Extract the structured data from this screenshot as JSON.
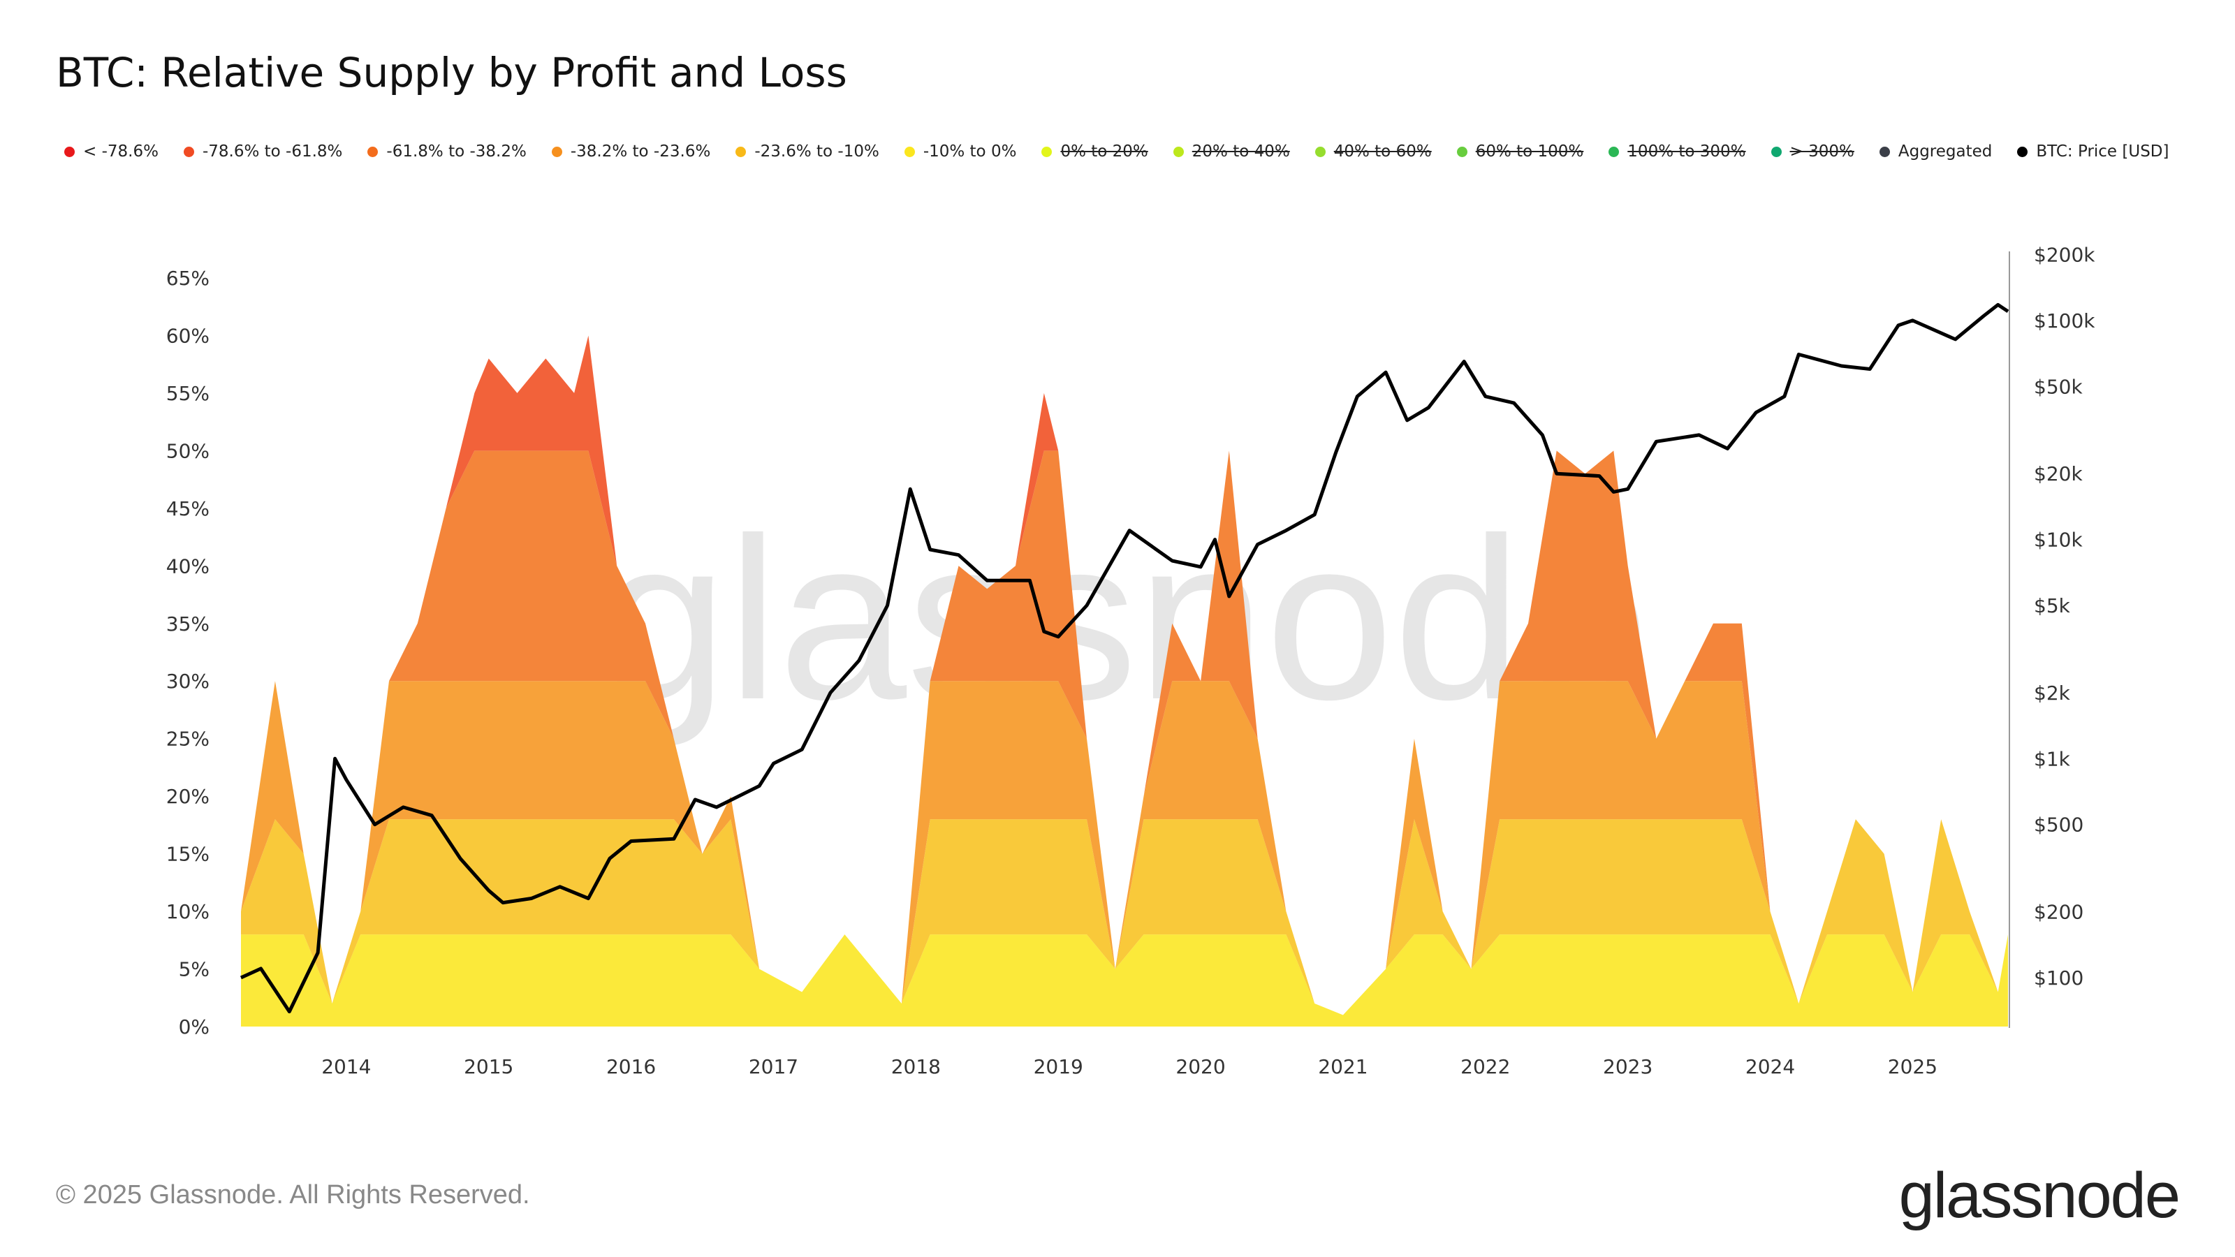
{
  "title": "BTC: Relative Supply by Profit and Loss",
  "footer": "© 2025 Glassnode. All Rights Reserved.",
  "logo": "glassnode",
  "watermark": "glassnode",
  "legend": [
    {
      "label": "< -78.6%",
      "color": "#e8191b",
      "enabled": true
    },
    {
      "label": "-78.6% to -61.8%",
      "color": "#f04b23",
      "enabled": true
    },
    {
      "label": "-61.8% to -38.2%",
      "color": "#f36c1c",
      "enabled": true
    },
    {
      "label": "-38.2% to -23.6%",
      "color": "#f6901e",
      "enabled": true
    },
    {
      "label": "-23.6% to -10%",
      "color": "#f8b918",
      "enabled": true
    },
    {
      "label": "-10% to 0%",
      "color": "#fbe61e",
      "enabled": true
    },
    {
      "label": "0% to 20%",
      "color": "#e2f51b",
      "enabled": false
    },
    {
      "label": "20% to 40%",
      "color": "#bde81c",
      "enabled": false
    },
    {
      "label": "40% to 60%",
      "color": "#96dd2e",
      "enabled": false
    },
    {
      "label": "60% to 100%",
      "color": "#68cd3e",
      "enabled": false
    },
    {
      "label": "100% to 300%",
      "color": "#2bb755",
      "enabled": false
    },
    {
      "label": "> 300%",
      "color": "#10a870",
      "enabled": false
    },
    {
      "label": "Aggregated",
      "color": "#3b3f48",
      "enabled": true
    },
    {
      "label": "BTC: Price [USD]",
      "color": "#000000",
      "enabled": true
    }
  ],
  "chart_data": {
    "type": "area",
    "title": "BTC: Relative Supply by Profit and Loss",
    "x_ticks": [
      "2014",
      "2015",
      "2016",
      "2017",
      "2018",
      "2019",
      "2020",
      "2021",
      "2022",
      "2023",
      "2024",
      "2025"
    ],
    "xlim": [
      2013.26,
      2025.67
    ],
    "y_left": {
      "ticks": [
        "0%",
        "5%",
        "10%",
        "15%",
        "20%",
        "25%",
        "30%",
        "35%",
        "40%",
        "45%",
        "50%",
        "55%",
        "60%",
        "65%"
      ],
      "ylim": [
        0,
        65
      ],
      "unit": "%"
    },
    "y_right": {
      "scale": "log",
      "ticks": [
        "$100",
        "$200",
        "$500",
        "$1k",
        "$2k",
        "$5k",
        "$10k",
        "$20k",
        "$50k",
        "$100k",
        "$200k"
      ],
      "tick_values": [
        100,
        200,
        500,
        1000,
        2000,
        5000,
        10000,
        20000,
        50000,
        100000,
        200000
      ],
      "ylim": [
        100,
        200000
      ]
    },
    "grid": false,
    "legend_placement": "top",
    "x": [
      2013.26,
      2013.5,
      2013.7,
      2013.9,
      2014.1,
      2014.3,
      2014.5,
      2014.7,
      2014.9,
      2015.0,
      2015.2,
      2015.4,
      2015.6,
      2015.7,
      2015.9,
      2016.1,
      2016.3,
      2016.5,
      2016.7,
      2016.9,
      2017.2,
      2017.5,
      2017.7,
      2017.9,
      2018.1,
      2018.3,
      2018.5,
      2018.7,
      2018.9,
      2019.0,
      2019.2,
      2019.4,
      2019.6,
      2019.8,
      2020.0,
      2020.2,
      2020.4,
      2020.6,
      2020.8,
      2021.0,
      2021.3,
      2021.5,
      2021.7,
      2021.9,
      2022.1,
      2022.3,
      2022.5,
      2022.7,
      2022.9,
      2023.0,
      2023.2,
      2023.4,
      2023.6,
      2023.8,
      2024.0,
      2024.2,
      2024.4,
      2024.6,
      2024.8,
      2025.0,
      2025.2,
      2025.4,
      2025.6,
      2025.67
    ],
    "series": [
      {
        "name": "-10% to 0%",
        "color": "#fbe93a",
        "values": [
          8,
          8,
          8,
          2,
          8,
          8,
          8,
          8,
          8,
          8,
          8,
          8,
          8,
          8,
          8,
          8,
          8,
          8,
          8,
          5,
          3,
          8,
          5,
          2,
          8,
          8,
          8,
          8,
          8,
          8,
          8,
          5,
          8,
          8,
          8,
          8,
          8,
          8,
          2,
          1,
          5,
          8,
          8,
          5,
          8,
          8,
          8,
          8,
          8,
          8,
          8,
          8,
          8,
          8,
          8,
          2,
          8,
          8,
          8,
          3,
          8,
          8,
          3,
          8
        ]
      },
      {
        "name": "-23.6% to -10%",
        "color": "#f9c93a",
        "values": [
          2,
          10,
          7,
          0,
          2,
          10,
          10,
          10,
          10,
          10,
          10,
          10,
          10,
          10,
          10,
          10,
          10,
          7,
          10,
          0,
          0,
          0,
          0,
          0,
          10,
          10,
          10,
          10,
          10,
          10,
          10,
          0,
          10,
          10,
          10,
          10,
          10,
          2,
          0,
          0,
          0,
          10,
          2,
          0,
          10,
          10,
          10,
          10,
          10,
          10,
          10,
          10,
          10,
          10,
          2,
          0,
          2,
          10,
          7,
          0,
          10,
          2,
          0,
          0
        ]
      },
      {
        "name": "-38.2% to -23.6%",
        "color": "#f7a23a",
        "values": [
          0,
          12,
          0,
          0,
          0,
          12,
          12,
          12,
          12,
          12,
          12,
          12,
          12,
          12,
          12,
          12,
          7,
          0,
          2,
          0,
          0,
          0,
          0,
          0,
          12,
          12,
          12,
          12,
          12,
          12,
          7,
          0,
          2,
          12,
          12,
          12,
          7,
          0,
          0,
          0,
          0,
          7,
          0,
          0,
          12,
          12,
          12,
          12,
          12,
          12,
          7,
          12,
          12,
          12,
          0,
          0,
          0,
          0,
          0,
          0,
          0,
          0,
          0,
          0
        ]
      },
      {
        "name": "-61.8% to -38.2%",
        "color": "#f4853a",
        "values": [
          0,
          0,
          0,
          0,
          0,
          0,
          5,
          15,
          20,
          20,
          20,
          20,
          20,
          20,
          10,
          5,
          0,
          0,
          0,
          0,
          0,
          0,
          0,
          0,
          0,
          10,
          8,
          10,
          20,
          20,
          0,
          0,
          0,
          5,
          0,
          20,
          0,
          0,
          0,
          0,
          0,
          0,
          0,
          0,
          0,
          5,
          20,
          18,
          20,
          10,
          0,
          0,
          5,
          5,
          0,
          0,
          0,
          0,
          0,
          0,
          0,
          0,
          0,
          0
        ]
      },
      {
        "name": "-78.6% to -61.8%",
        "color": "#f2623a",
        "values": [
          0,
          0,
          0,
          0,
          0,
          0,
          0,
          0,
          5,
          8,
          5,
          8,
          5,
          10,
          0,
          0,
          0,
          0,
          0,
          0,
          0,
          0,
          0,
          0,
          0,
          0,
          0,
          0,
          5,
          0,
          0,
          0,
          0,
          0,
          0,
          0,
          0,
          0,
          0,
          0,
          0,
          0,
          0,
          0,
          0,
          0,
          0,
          0,
          0,
          0,
          0,
          0,
          0,
          0,
          0,
          0,
          0,
          0,
          0,
          0,
          0,
          0,
          0,
          0
        ]
      },
      {
        "name": "< -78.6%",
        "color": "#e8191b",
        "values": [
          0,
          0,
          0,
          0,
          0,
          0,
          0,
          0,
          0,
          0,
          0,
          0,
          0,
          0,
          0,
          0,
          0,
          0,
          0,
          0,
          0,
          0,
          0,
          0,
          0,
          0,
          0,
          0,
          0,
          0,
          0,
          0,
          0,
          0,
          0,
          0,
          0,
          0,
          0,
          0,
          0,
          0,
          0,
          0,
          0,
          0,
          0,
          0,
          0,
          0,
          0,
          0,
          0,
          0,
          0,
          0,
          0,
          0,
          0,
          0,
          0,
          0,
          0,
          0
        ]
      }
    ],
    "price": {
      "name": "BTC: Price [USD]",
      "color": "#000000",
      "x": [
        2013.26,
        2013.4,
        2013.6,
        2013.8,
        2013.92,
        2014.0,
        2014.2,
        2014.4,
        2014.6,
        2014.8,
        2015.0,
        2015.1,
        2015.3,
        2015.5,
        2015.7,
        2015.85,
        2016.0,
        2016.3,
        2016.45,
        2016.6,
        2016.9,
        2017.0,
        2017.2,
        2017.4,
        2017.6,
        2017.8,
        2017.96,
        2018.1,
        2018.3,
        2018.5,
        2018.8,
        2018.9,
        2019.0,
        2019.2,
        2019.5,
        2019.8,
        2020.0,
        2020.1,
        2020.2,
        2020.4,
        2020.6,
        2020.8,
        2020.95,
        2021.1,
        2021.3,
        2021.45,
        2021.6,
        2021.85,
        2022.0,
        2022.2,
        2022.4,
        2022.5,
        2022.8,
        2022.9,
        2023.0,
        2023.2,
        2023.5,
        2023.7,
        2023.9,
        2024.1,
        2024.2,
        2024.5,
        2024.7,
        2024.9,
        2025.0,
        2025.3,
        2025.5,
        2025.6,
        2025.67
      ],
      "values": [
        100,
        110,
        70,
        130,
        1000,
        800,
        500,
        600,
        550,
        350,
        250,
        220,
        230,
        260,
        230,
        350,
        420,
        430,
        650,
        600,
        750,
        950,
        1100,
        2000,
        2800,
        5000,
        17000,
        9000,
        8500,
        6500,
        6500,
        3800,
        3600,
        5000,
        11000,
        8000,
        7500,
        10000,
        5500,
        9500,
        11000,
        13000,
        25000,
        45000,
        58000,
        35000,
        40000,
        65000,
        45000,
        42000,
        30000,
        20000,
        19500,
        16500,
        17000,
        28000,
        30000,
        26000,
        38000,
        45000,
        70000,
        62000,
        60000,
        95000,
        100000,
        82000,
        105000,
        118000,
        110000
      ]
    }
  }
}
